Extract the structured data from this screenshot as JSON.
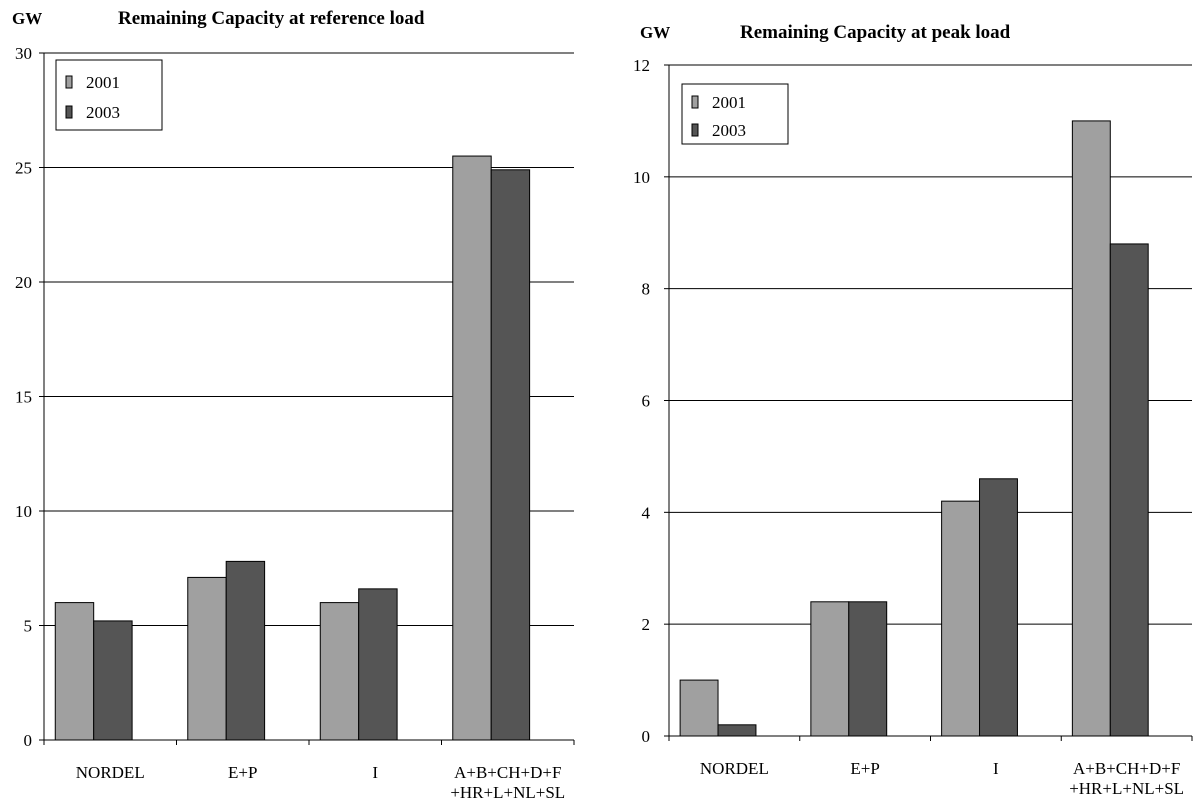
{
  "chart_data": [
    {
      "type": "bar",
      "title": "Remaining Capacity at reference load",
      "unit_label": "GW",
      "categories": [
        [
          "NORDEL"
        ],
        [
          "E+P"
        ],
        [
          "I"
        ],
        [
          "A+B+CH+D+F",
          "+HR+L+NL+SL"
        ]
      ],
      "series": [
        {
          "name": "2001",
          "values": [
            6.0,
            7.1,
            6.0,
            25.5
          ],
          "color": "#a0a0a0"
        },
        {
          "name": "2003",
          "values": [
            5.2,
            7.8,
            6.6,
            24.9
          ],
          "color": "#555555"
        }
      ],
      "ylim": [
        0,
        30
      ],
      "yticks": [
        0,
        5,
        10,
        15,
        20,
        25,
        30
      ],
      "grid": true,
      "legend_position": "top-left"
    },
    {
      "type": "bar",
      "title": "Remaining Capacity at peak load",
      "unit_label": "GW",
      "categories": [
        [
          "NORDEL"
        ],
        [
          "E+P"
        ],
        [
          "I"
        ],
        [
          "A+B+CH+D+F",
          "+HR+L+NL+SL"
        ]
      ],
      "series": [
        {
          "name": "2001",
          "values": [
            1.0,
            2.4,
            4.2,
            11.0
          ],
          "color": "#a0a0a0"
        },
        {
          "name": "2003",
          "values": [
            0.2,
            2.4,
            4.6,
            8.8
          ],
          "color": "#555555"
        }
      ],
      "ylim": [
        0,
        12
      ],
      "yticks": [
        0,
        2,
        4,
        6,
        8,
        10,
        12
      ],
      "grid": true,
      "legend_position": "top-left"
    }
  ]
}
